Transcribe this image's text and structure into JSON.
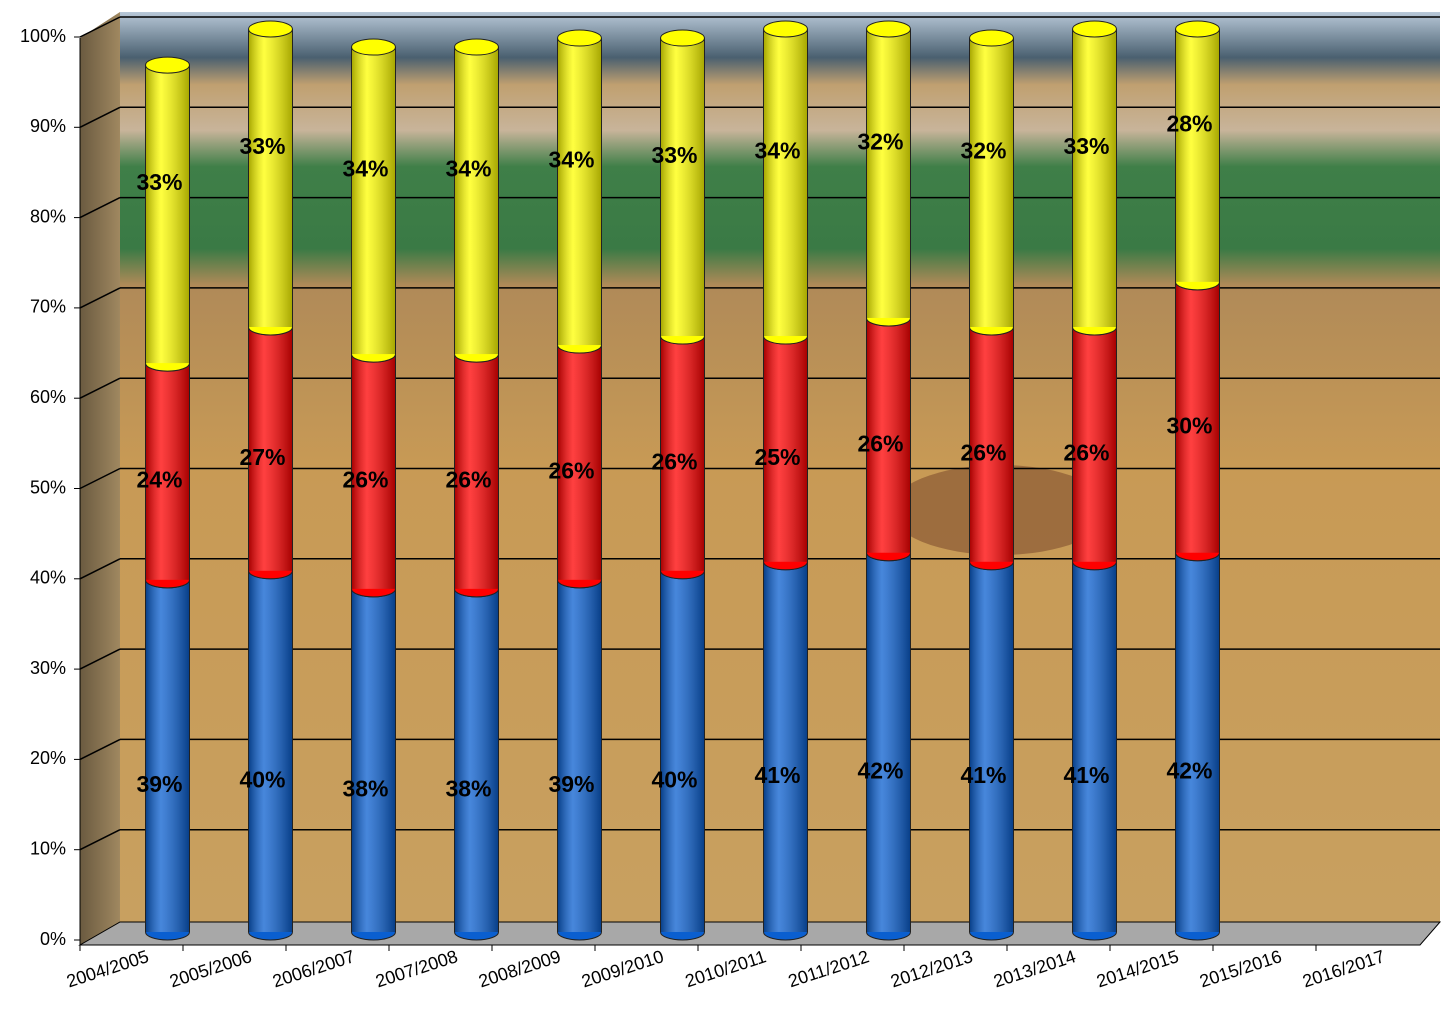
{
  "chart_data": {
    "type": "bar3d_stacked",
    "categories": [
      "2004/2005",
      "2005/2006",
      "2006/2007",
      "2007/2008",
      "2008/2009",
      "2009/2010",
      "2010/2011",
      "2011/2012",
      "2012/2013",
      "2013/2014",
      "2014/2015",
      "2015/2016",
      "2016/2017"
    ],
    "series": [
      {
        "color": "#0a5fd0",
        "values": [
          39,
          40,
          38,
          38,
          39,
          40,
          41,
          42,
          41,
          41,
          42,
          null,
          null
        ],
        "value_labels": [
          "39%",
          "40%",
          "38%",
          "38%",
          "39%",
          "40%",
          "41%",
          "42%",
          "41%",
          "41%",
          "42%",
          null,
          null
        ]
      },
      {
        "color": "#ff0000",
        "values": [
          24,
          27,
          26,
          26,
          26,
          26,
          25,
          26,
          26,
          26,
          30,
          null,
          null
        ],
        "value_labels": [
          "24%",
          "27%",
          "26%",
          "26%",
          "26%",
          "26%",
          "25%",
          "26%",
          "26%",
          "26%",
          "30%",
          null,
          null
        ]
      },
      {
        "color": "#ffff00",
        "values": [
          33,
          33,
          34,
          34,
          34,
          33,
          34,
          32,
          32,
          33,
          28,
          null,
          null
        ],
        "value_labels": [
          "33%",
          "33%",
          "34%",
          "34%",
          "34%",
          "33%",
          "34%",
          "32%",
          "32%",
          "33%",
          "28%",
          null,
          null
        ]
      }
    ],
    "ylim": [
      0,
      100
    ],
    "yticks": [
      {
        "value": 0,
        "label": "0%"
      },
      {
        "value": 10,
        "label": "10%"
      },
      {
        "value": 20,
        "label": "20%"
      },
      {
        "value": 30,
        "label": "30%"
      },
      {
        "value": 40,
        "label": "40%"
      },
      {
        "value": 50,
        "label": "50%"
      },
      {
        "value": 60,
        "label": "60%"
      },
      {
        "value": 70,
        "label": "70%"
      },
      {
        "value": 80,
        "label": "80%"
      },
      {
        "value": 90,
        "label": "90%"
      },
      {
        "value": 100,
        "label": "100%"
      }
    ],
    "grid": true
  }
}
